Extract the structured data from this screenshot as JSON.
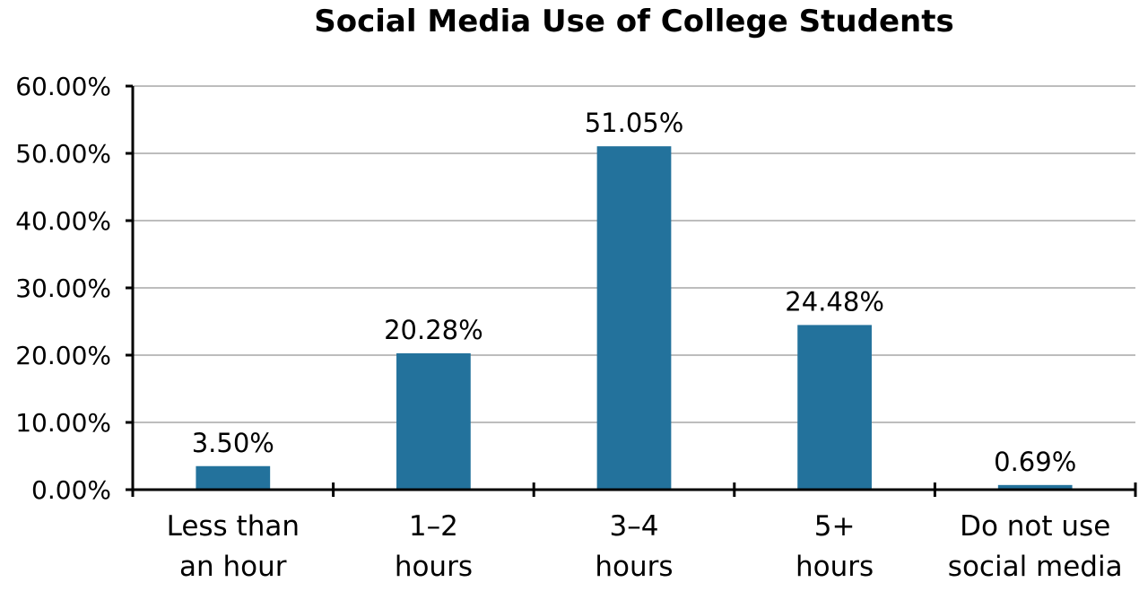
{
  "chart_data": {
    "type": "bar",
    "title": "Social Media Use of College Students",
    "xlabel": "",
    "ylabel": "",
    "categories": [
      [
        "Less than",
        "an hour"
      ],
      [
        "1–2",
        "hours"
      ],
      [
        "3–4",
        "hours"
      ],
      [
        "5+",
        "hours"
      ],
      [
        "Do not use",
        "social media"
      ]
    ],
    "values": [
      3.5,
      20.28,
      51.05,
      24.48,
      0.69
    ],
    "data_labels": [
      "3.50%",
      "20.28%",
      "51.05%",
      "24.48%",
      "0.69%"
    ],
    "ylim": [
      0,
      60
    ],
    "yticks": [
      0,
      10,
      20,
      30,
      40,
      50,
      60
    ],
    "ytick_labels": [
      "0.00%",
      "10.00%",
      "20.00%",
      "30.00%",
      "40.00%",
      "50.00%",
      "60.00%"
    ],
    "grid": true,
    "legend": false,
    "bar_color": "#23729c"
  }
}
